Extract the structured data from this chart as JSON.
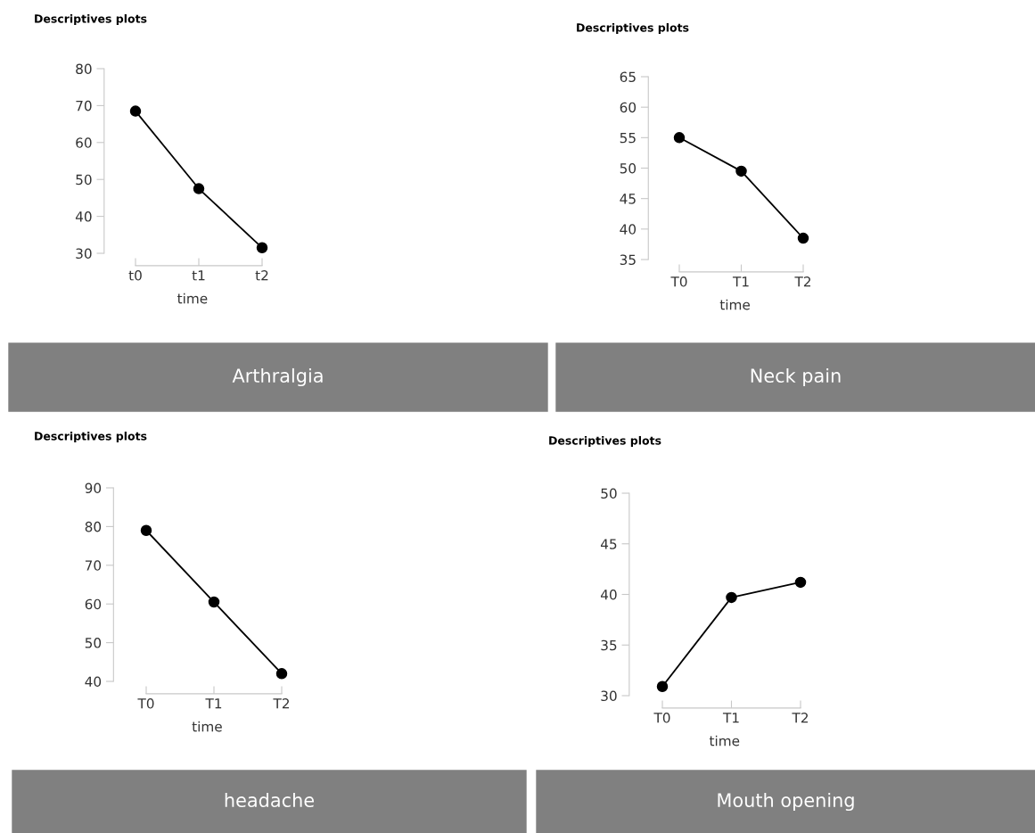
{
  "chart_data": [
    {
      "type": "line",
      "title": "Descriptives plots",
      "xlabel": "time",
      "categories": [
        "t0",
        "t1",
        "t2"
      ],
      "values": [
        68.5,
        47.5,
        31.5
      ],
      "color": "#000000",
      "marker": "circle",
      "ylim": [
        30,
        80
      ],
      "yticks": [
        30,
        40,
        50,
        60,
        70,
        80
      ],
      "annotations": [
        "Arthralgia"
      ]
    },
    {
      "type": "line",
      "title": "Descriptives plots",
      "xlabel": "time",
      "categories": [
        "T0",
        "T1",
        "T2"
      ],
      "values": [
        55,
        49.5,
        38.5
      ],
      "color": "#000000",
      "marker": "circle",
      "ylim": [
        35,
        65
      ],
      "yticks": [
        35,
        40,
        45,
        50,
        55,
        60,
        65
      ],
      "annotations": [
        "Neck pain"
      ]
    },
    {
      "type": "line",
      "title": "Descriptives plots",
      "xlabel": "time",
      "categories": [
        "T0",
        "T1",
        "T2"
      ],
      "values": [
        79,
        60.5,
        42
      ],
      "color": "#000000",
      "marker": "circle",
      "ylim": [
        40,
        90
      ],
      "yticks": [
        40,
        50,
        60,
        70,
        80,
        90
      ],
      "annotations": [
        "headache"
      ]
    },
    {
      "type": "line",
      "title": "Descriptives plots",
      "xlabel": "time",
      "categories": [
        "T0",
        "T1",
        "T2"
      ],
      "values": [
        30.9,
        39.7,
        41.2
      ],
      "color": "#000000",
      "marker": "circle",
      "ylim": [
        30,
        50
      ],
      "yticks": [
        30,
        35,
        40,
        45,
        50
      ],
      "annotations": [
        "Mouth opening"
      ]
    }
  ]
}
